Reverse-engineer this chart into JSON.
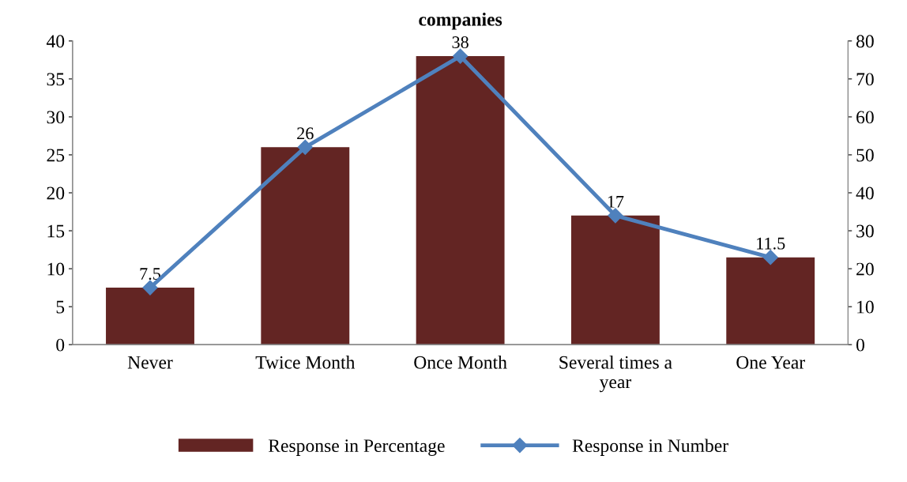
{
  "chart_data": {
    "type": "bar",
    "title": "companies",
    "categories": [
      "Never",
      "Twice Month",
      "Once Month",
      "Several times a\nyear",
      "One Year"
    ],
    "series": [
      {
        "name": "Response in Percentage",
        "type": "bar",
        "color": "#632523",
        "values": [
          7.5,
          26,
          38,
          17,
          11.5
        ],
        "data_labels": true
      },
      {
        "name": "Response in Number",
        "type": "line",
        "axis": "y2",
        "color": "#4f81bd",
        "marker": "diamond",
        "values": [
          15,
          52,
          76,
          34,
          23
        ]
      }
    ],
    "ylim": [
      0,
      40
    ],
    "yticks": [
      0,
      5,
      10,
      15,
      20,
      25,
      30,
      35,
      40
    ],
    "y2lim": [
      0,
      80
    ],
    "y2ticks": [
      0,
      10,
      20,
      30,
      40,
      50,
      60,
      70,
      80
    ],
    "grid": false,
    "legend": "bottom"
  }
}
